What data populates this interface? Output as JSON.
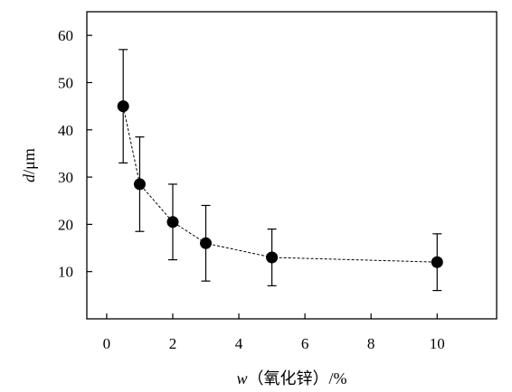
{
  "chart_data": {
    "type": "scatter",
    "title": "",
    "xlabel": "w（氧化锌）/%",
    "xlabel_parts": {
      "var": "w",
      "rest": "（氧化锌）/%"
    },
    "ylabel": "d/μm",
    "ylabel_parts": {
      "var": "d",
      "rest": "/μm"
    },
    "x_ticks": [
      0,
      2,
      4,
      6,
      8,
      10
    ],
    "y_ticks": [
      10,
      20,
      30,
      40,
      50,
      60
    ],
    "xlim": [
      -0.6,
      11.8
    ],
    "ylim": [
      0,
      65
    ],
    "grid": false,
    "legend": "none",
    "marker_color": "#000000",
    "line_style": "dashed",
    "series": [
      {
        "x": [
          0.5,
          1,
          2,
          3,
          5,
          10
        ],
        "y": [
          45,
          28.5,
          20.5,
          16,
          13,
          12
        ],
        "error_upper": [
          57,
          38.5,
          28.5,
          24,
          19,
          18
        ],
        "error_lower": [
          33,
          18.5,
          12.5,
          8,
          7,
          6
        ]
      }
    ]
  }
}
